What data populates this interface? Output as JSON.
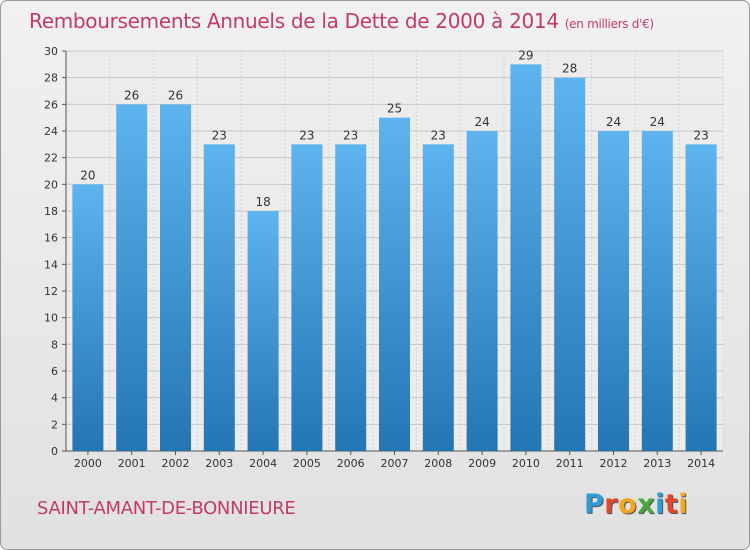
{
  "title": "Remboursements Annuels de la Dette de 2000 à 2014",
  "unit_note": "(en milliers d'€)",
  "commune": "SAINT-AMANT-DE-BONNIEURE",
  "logo": {
    "text": "Proxiti",
    "colors": [
      "#2e9bd6",
      "#e0472c",
      "#f2a81d",
      "#4aa83c",
      "#2e9bd6",
      "#e0472c",
      "#f2a81d"
    ]
  },
  "colors": {
    "bar_light": "#5db4ee",
    "bar_dark": "#2475b4",
    "title": "#c23a6d"
  },
  "chart_data": {
    "type": "bar",
    "title": "Remboursements Annuels de la Dette de 2000 à 2014",
    "categories": [
      "2000",
      "2001",
      "2002",
      "2003",
      "2004",
      "2005",
      "2006",
      "2007",
      "2008",
      "2009",
      "2010",
      "2011",
      "2012",
      "2013",
      "2014"
    ],
    "values": [
      20,
      26,
      26,
      23,
      18,
      23,
      23,
      25,
      23,
      24,
      29,
      28,
      24,
      24,
      23
    ],
    "ylim": [
      0,
      30
    ],
    "yticks": [
      0,
      2,
      4,
      6,
      8,
      10,
      12,
      14,
      16,
      18,
      20,
      22,
      24,
      26,
      28,
      30
    ],
    "grid": true,
    "data_labels": true
  }
}
